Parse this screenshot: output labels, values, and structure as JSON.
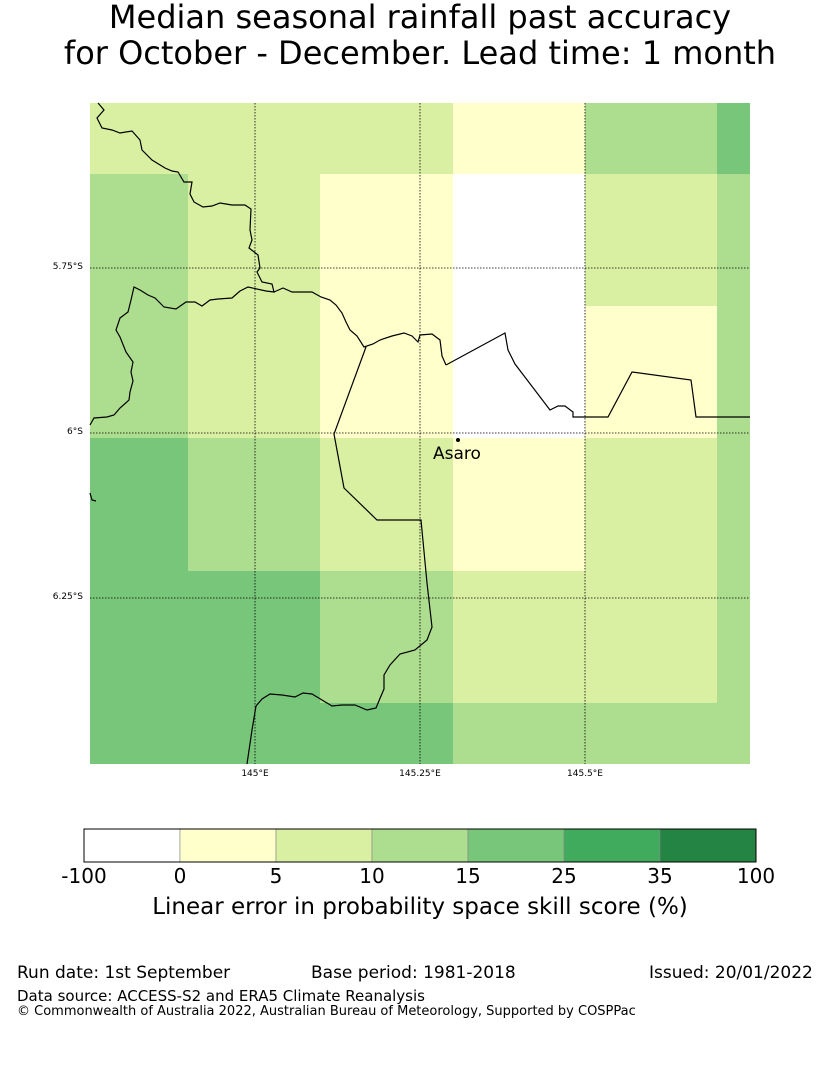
{
  "title_line1": "Median seasonal rainfall past accuracy",
  "title_line2": "for October - December. Lead time: 1 month",
  "map": {
    "lat_ticks": [
      "5.75°S",
      "6°S",
      "6.25°S"
    ],
    "lon_ticks": [
      "145°E",
      "145.25°E",
      "145.5°E"
    ],
    "place_label": "Asaro",
    "grid_classes": [
      [
        "5-10",
        "5-10",
        "5-10",
        "0-5",
        "10-15",
        "15-25"
      ],
      [
        "10-15",
        "5-10",
        "0-5",
        "-100-0",
        "5-10",
        "10-15"
      ],
      [
        "10-15",
        "5-10",
        "0-5",
        "-100-0",
        "0-5",
        "10-15"
      ],
      [
        "15-25",
        "10-15",
        "5-10",
        "0-5",
        "5-10",
        "10-15"
      ],
      [
        "15-25",
        "15-25",
        "10-15",
        "5-10",
        "5-10",
        "10-15"
      ],
      [
        "15-25",
        "15-25",
        "15-25",
        "10-15",
        "10-15",
        "10-15"
      ]
    ]
  },
  "colorbar": {
    "title": "Linear error in probability space skill score (%)",
    "labels": [
      "-100",
      "0",
      "5",
      "10",
      "15",
      "25",
      "35",
      "100"
    ],
    "colors": [
      "#ffffff",
      "#ffffcc",
      "#d9f0a3",
      "#addd8e",
      "#78c679",
      "#41ab5d",
      "#238443"
    ]
  },
  "footer": {
    "run_date": "Run date: 1st September",
    "base_period": "Base period: 1981-2018",
    "issued": "Issued: 20/01/2022",
    "data_source": "Data source: ACCESS-S2 and ERA5 Climate Reanalysis",
    "copyright": "© Commonwealth of Australia 2022, Australian Bureau of Meteorology, Supported by COSPPac"
  }
}
